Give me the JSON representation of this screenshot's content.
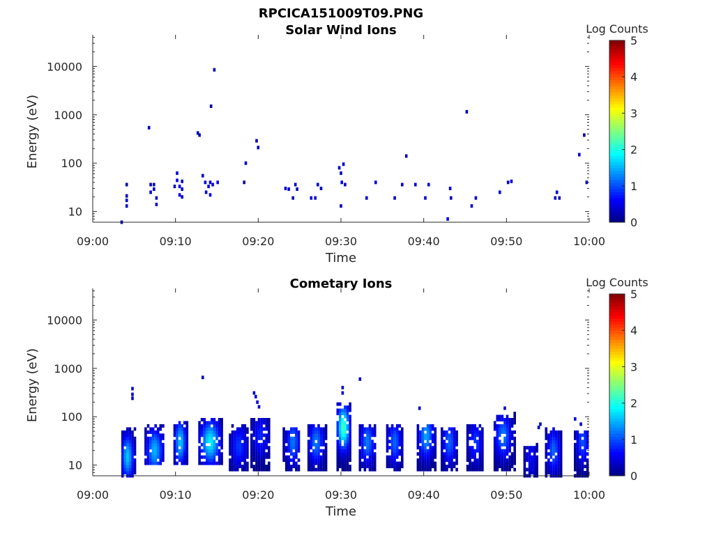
{
  "figure_title": "RPCICA151009T09.PNG",
  "colors": {
    "colormap": [
      "#00007f",
      "#0000ff",
      "#0080ff",
      "#00ffff",
      "#80ff80",
      "#ffff00",
      "#ff8000",
      "#ff0000",
      "#7f0000"
    ],
    "axis": "#262626"
  },
  "chart_data": [
    {
      "type": "heatmap",
      "title": "Solar Wind Ions",
      "xlabel": "Time",
      "ylabel": "Energy (eV)",
      "xlim": [
        "09:00",
        "10:00"
      ],
      "ylim": [
        6,
        45000
      ],
      "y_scale": "log",
      "x_ticks": [
        "09:00",
        "09:10",
        "09:20",
        "09:30",
        "09:40",
        "09:50",
        "10:00"
      ],
      "y_ticks": [
        10,
        100,
        1000,
        10000
      ],
      "y_tick_labels": [
        "10",
        "100",
        "1000",
        "10000"
      ],
      "colorbar": {
        "label": "Log Counts",
        "range": [
          0,
          5
        ],
        "ticks": [
          "0",
          "1",
          "2",
          "3",
          "4",
          "5"
        ]
      },
      "grid": false,
      "cells": [
        [
          3.5,
          6,
          0.3
        ],
        [
          4.1,
          13,
          0.4
        ],
        [
          4.1,
          17,
          0.4
        ],
        [
          4.1,
          21,
          0.3
        ],
        [
          4.1,
          36,
          0.2
        ],
        [
          6.8,
          540,
          0.3
        ],
        [
          7.0,
          25,
          0.4
        ],
        [
          7.0,
          36,
          0.3
        ],
        [
          7.4,
          29,
          0.4
        ],
        [
          7.4,
          36,
          0.4
        ],
        [
          7.7,
          14,
          0.5
        ],
        [
          7.7,
          19,
          0.4
        ],
        [
          9.9,
          33,
          0.3
        ],
        [
          10.2,
          62,
          0.4
        ],
        [
          10.2,
          44,
          0.5
        ],
        [
          10.5,
          22,
          0.5
        ],
        [
          10.5,
          33,
          0.5
        ],
        [
          10.8,
          29,
          0.4
        ],
        [
          10.8,
          42,
          0.3
        ],
        [
          10.8,
          20,
          0.4
        ],
        [
          12.7,
          420,
          0.2
        ],
        [
          12.9,
          380,
          0.2
        ],
        [
          13.3,
          55,
          0.4
        ],
        [
          13.6,
          40,
          0.4
        ],
        [
          13.7,
          25,
          0.4
        ],
        [
          14.0,
          33,
          0.5
        ],
        [
          14.2,
          22,
          0.5
        ],
        [
          14.2,
          40,
          0.4
        ],
        [
          14.5,
          36,
          0.5
        ],
        [
          14.7,
          8500,
          0.2
        ],
        [
          15.1,
          40,
          0.5
        ],
        [
          14.3,
          1500,
          0.2
        ],
        [
          18.3,
          40,
          0.2
        ],
        [
          18.5,
          100,
          0.3
        ],
        [
          19.8,
          290,
          0.3
        ],
        [
          20.0,
          210,
          0.3
        ],
        [
          23.3,
          30,
          0.4
        ],
        [
          23.7,
          29,
          0.4
        ],
        [
          24.2,
          19,
          0.4
        ],
        [
          24.5,
          36,
          0.4
        ],
        [
          24.7,
          29,
          0.3
        ],
        [
          26.4,
          19,
          0.4
        ],
        [
          26.9,
          19,
          0.4
        ],
        [
          27.2,
          36,
          0.4
        ],
        [
          27.6,
          30,
          0.4
        ],
        [
          29.8,
          80,
          0.4
        ],
        [
          30.0,
          62,
          0.4
        ],
        [
          30.1,
          40,
          0.4
        ],
        [
          30.3,
          95,
          0.3
        ],
        [
          30.0,
          13,
          0.4
        ],
        [
          30.5,
          36,
          0.4
        ],
        [
          33.1,
          19,
          0.4
        ],
        [
          34.2,
          40,
          0.4
        ],
        [
          36.5,
          19,
          0.4
        ],
        [
          37.4,
          36,
          0.4
        ],
        [
          37.9,
          140,
          0.3
        ],
        [
          39.0,
          36,
          0.4
        ],
        [
          40.2,
          19,
          0.4
        ],
        [
          40.6,
          36,
          0.5
        ],
        [
          42.9,
          7,
          0.4
        ],
        [
          43.2,
          30,
          0.4
        ],
        [
          43.3,
          19,
          0.4
        ],
        [
          45.2,
          1150,
          0.3
        ],
        [
          45.8,
          13,
          0.4
        ],
        [
          46.3,
          19,
          0.4
        ],
        [
          49.2,
          25,
          0.4
        ],
        [
          50.2,
          40,
          0.4
        ],
        [
          50.6,
          42,
          0.4
        ],
        [
          55.9,
          19,
          0.4
        ],
        [
          56.1,
          25,
          0.4
        ],
        [
          56.4,
          19,
          0.3
        ],
        [
          58.8,
          150,
          0.3
        ],
        [
          59.4,
          380,
          0.3
        ],
        [
          59.7,
          40,
          0.4
        ]
      ]
    },
    {
      "type": "heatmap",
      "title": "Cometary Ions",
      "xlabel": "Time",
      "ylabel": "Energy (eV)",
      "xlim": [
        "09:00",
        "10:00"
      ],
      "ylim": [
        6,
        45000
      ],
      "y_scale": "log",
      "x_ticks": [
        "09:00",
        "09:10",
        "09:20",
        "09:30",
        "09:40",
        "09:50",
        "10:00"
      ],
      "y_ticks": [
        10,
        100,
        1000,
        10000
      ],
      "y_tick_labels": [
        "10",
        "100",
        "1000",
        "10000"
      ],
      "colorbar": {
        "label": "Log Counts",
        "range": [
          0,
          5
        ],
        "ticks": [
          "0",
          "1",
          "2",
          "3",
          "4",
          "5"
        ]
      },
      "grid": false,
      "clusters": [
        {
          "t_start": 3.6,
          "t_end": 5.2,
          "e_low": 6,
          "e_high": 60,
          "peak_t": 4.2,
          "peak_e": 15,
          "peak_val": 1.6
        },
        {
          "t_start": 6.4,
          "t_end": 8.6,
          "e_low": 10,
          "e_high": 70,
          "peak_t": 7.5,
          "peak_e": 20,
          "peak_val": 1.5
        },
        {
          "t_start": 9.9,
          "t_end": 11.4,
          "e_low": 10,
          "e_high": 80,
          "peak_t": 10.6,
          "peak_e": 30,
          "peak_val": 1.6
        },
        {
          "t_start": 12.9,
          "t_end": 15.6,
          "e_low": 10,
          "e_high": 90,
          "peak_t": 14.2,
          "peak_e": 30,
          "peak_val": 1.8
        },
        {
          "t_start": 16.6,
          "t_end": 18.8,
          "e_low": 8,
          "e_high": 70,
          "peak_t": 17.7,
          "peak_e": 25,
          "peak_val": 0.9
        },
        {
          "t_start": 19.2,
          "t_end": 21.4,
          "e_low": 8,
          "e_high": 90,
          "peak_t": 20.3,
          "peak_e": 40,
          "peak_val": 0.8
        },
        {
          "t_start": 23.1,
          "t_end": 24.9,
          "e_low": 8,
          "e_high": 60,
          "peak_t": 24.2,
          "peak_e": 30,
          "peak_val": 1.2
        },
        {
          "t_start": 26.1,
          "t_end": 28.2,
          "e_low": 8,
          "e_high": 70,
          "peak_t": 27.0,
          "peak_e": 30,
          "peak_val": 1.2
        },
        {
          "t_start": 29.6,
          "t_end": 31.3,
          "e_low": 8,
          "e_high": 200,
          "peak_t": 30.3,
          "peak_e": 60,
          "peak_val": 2.2
        },
        {
          "t_start": 32.3,
          "t_end": 34.3,
          "e_low": 8,
          "e_high": 70,
          "peak_t": 33.2,
          "peak_e": 30,
          "peak_val": 1.2
        },
        {
          "t_start": 35.6,
          "t_end": 37.5,
          "e_low": 8,
          "e_high": 70,
          "peak_t": 36.5,
          "peak_e": 30,
          "peak_val": 1.1
        },
        {
          "t_start": 39.3,
          "t_end": 41.4,
          "e_low": 8,
          "e_high": 70,
          "peak_t": 40.3,
          "peak_e": 40,
          "peak_val": 1.4
        },
        {
          "t_start": 42.2,
          "t_end": 44.0,
          "e_low": 8,
          "e_high": 60,
          "peak_t": 43.1,
          "peak_e": 30,
          "peak_val": 1.1
        },
        {
          "t_start": 45.3,
          "t_end": 47.2,
          "e_low": 8,
          "e_high": 70,
          "peak_t": 46.3,
          "peak_e": 30,
          "peak_val": 0.9
        },
        {
          "t_start": 48.6,
          "t_end": 51.0,
          "e_low": 8,
          "e_high": 120,
          "peak_t": 49.6,
          "peak_e": 40,
          "peak_val": 1.2
        },
        {
          "t_start": 52.2,
          "t_end": 53.8,
          "e_low": 6,
          "e_high": 30,
          "peak_t": 53.0,
          "peak_e": 15,
          "peak_val": 0.6
        },
        {
          "t_start": 54.8,
          "t_end": 56.6,
          "e_low": 6,
          "e_high": 60,
          "peak_t": 55.7,
          "peak_e": 20,
          "peak_val": 1.1
        },
        {
          "t_start": 58.3,
          "t_end": 60.0,
          "e_low": 6,
          "e_high": 50,
          "peak_t": 59.2,
          "peak_e": 30,
          "peak_val": 1.0
        }
      ],
      "isolated_cells": [
        [
          4.8,
          380,
          0.4
        ],
        [
          4.8,
          290,
          0.4
        ],
        [
          4.8,
          240,
          0.4
        ],
        [
          13.3,
          650,
          0.3
        ],
        [
          19.5,
          310,
          0.4
        ],
        [
          19.7,
          260,
          0.4
        ],
        [
          19.9,
          200,
          0.4
        ],
        [
          20.1,
          160,
          0.4
        ],
        [
          30.2,
          400,
          0.4
        ],
        [
          30.2,
          310,
          0.4
        ],
        [
          32.3,
          600,
          0.3
        ],
        [
          39.5,
          150,
          0.3
        ],
        [
          49.8,
          150,
          0.4
        ],
        [
          53.9,
          60,
          0.3
        ],
        [
          54.1,
          70,
          0.3
        ],
        [
          58.3,
          90,
          0.4
        ],
        [
          59.0,
          70,
          0.4
        ]
      ]
    }
  ]
}
